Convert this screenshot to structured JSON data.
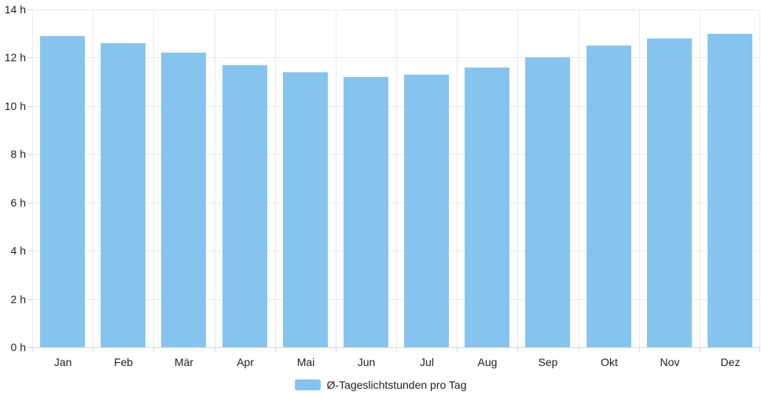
{
  "chart_data": {
    "type": "bar",
    "categories": [
      "Jan",
      "Feb",
      "Mär",
      "Apr",
      "Mai",
      "Jun",
      "Jul",
      "Aug",
      "Sep",
      "Okt",
      "Nov",
      "Dez"
    ],
    "values": [
      12.9,
      12.6,
      12.2,
      11.7,
      11.4,
      11.2,
      11.3,
      11.6,
      12.0,
      12.5,
      12.8,
      13.0
    ],
    "series_name": "Ø-Tageslichtstunden pro Tag",
    "title": "",
    "xlabel": "",
    "ylabel": "",
    "ylim": [
      0,
      14
    ],
    "ytick_step": 2,
    "yticks": [
      {
        "value": 0,
        "label": "0 h"
      },
      {
        "value": 2,
        "label": "2 h"
      },
      {
        "value": 4,
        "label": "4 h"
      },
      {
        "value": 6,
        "label": "6 h"
      },
      {
        "value": 8,
        "label": "8 h"
      },
      {
        "value": 10,
        "label": "10 h"
      },
      {
        "value": 12,
        "label": "12 h"
      },
      {
        "value": 14,
        "label": "14 h"
      }
    ],
    "grid": true,
    "legend_position": "bottom"
  },
  "legend": {
    "label": "Ø-Tageslichtstunden pro Tag"
  },
  "colors": {
    "bar": "#86C4F0",
    "grid": "#EBEBEB",
    "axis": "#D9D9D9",
    "text": "#222222"
  }
}
